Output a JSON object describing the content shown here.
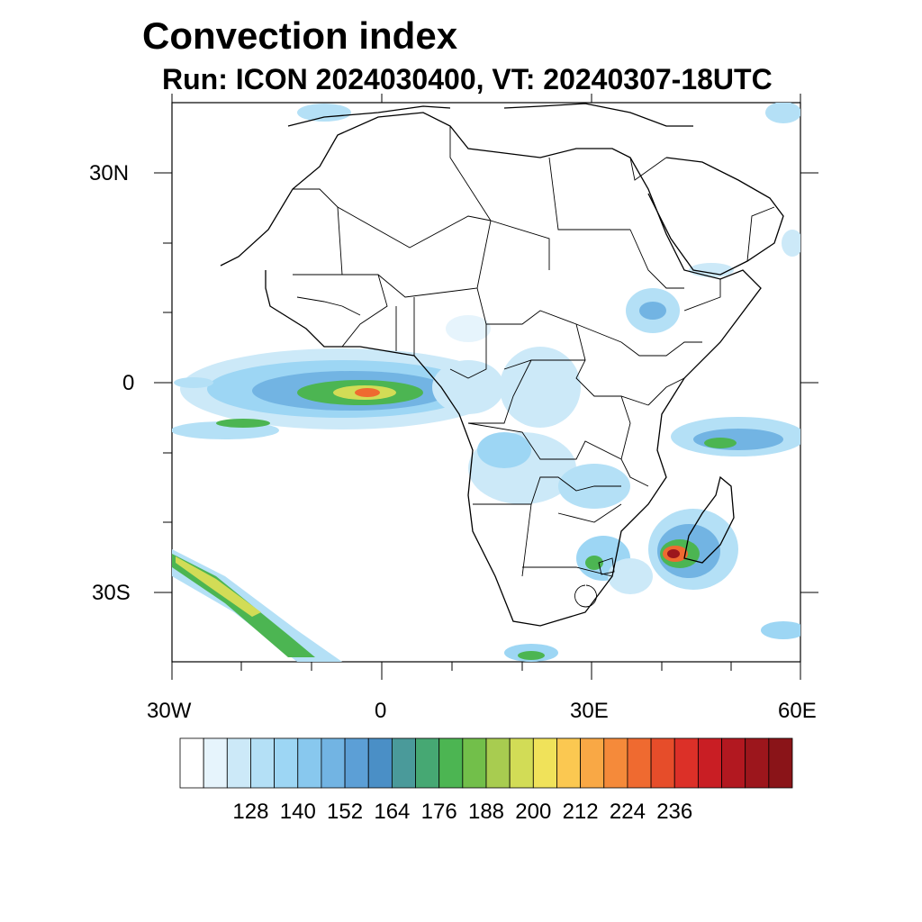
{
  "title": "Convection index",
  "subtitle": "Run: ICON 2024030400,  VT: 20240307-18UTC",
  "map": {
    "lon_range": [
      -30,
      60
    ],
    "lat_range": [
      -40,
      40
    ],
    "lon_ticks": [
      {
        "value": -30,
        "label": "30W"
      },
      {
        "value": 0,
        "label": "0"
      },
      {
        "value": 30,
        "label": "30E"
      },
      {
        "value": 60,
        "label": "60E"
      }
    ],
    "lat_ticks": [
      {
        "value": 30,
        "label": "30N"
      },
      {
        "value": 0,
        "label": "0"
      },
      {
        "value": -30,
        "label": "30S"
      }
    ]
  },
  "colorbar": {
    "colors": [
      "#ffffff",
      "#e6f4fc",
      "#cce9f8",
      "#b4e0f6",
      "#9dd6f4",
      "#88c8ee",
      "#72b4e3",
      "#5c9fd6",
      "#4a8fc6",
      "#4a9a9a",
      "#46a873",
      "#4cb552",
      "#72bf4a",
      "#a8cc50",
      "#d2dc56",
      "#f0e25a",
      "#fbc851",
      "#f9a845",
      "#f58a3a",
      "#ef6a30",
      "#e64d2a",
      "#dc3028",
      "#c91e24",
      "#b21820",
      "#9c161c",
      "#8a1418"
    ],
    "labels": [
      "128",
      "140",
      "152",
      "164",
      "176",
      "188",
      "200",
      "212",
      "224",
      "236"
    ]
  }
}
